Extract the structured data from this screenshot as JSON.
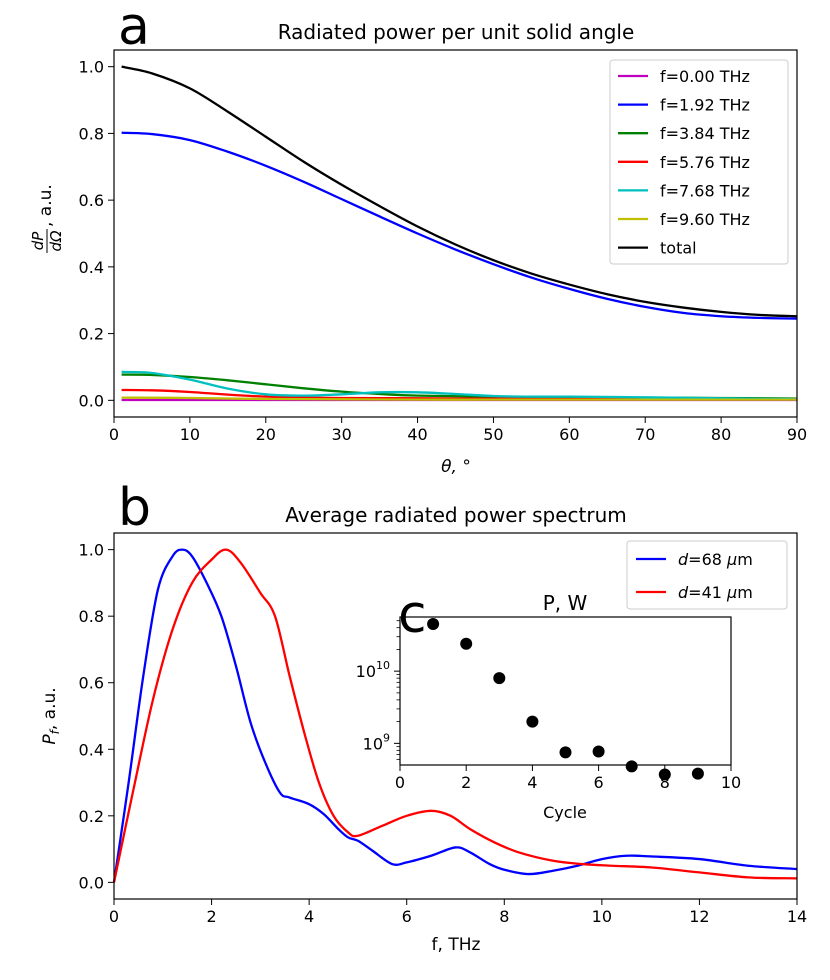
{
  "chart_data": [
    {
      "panel_label": "a",
      "type": "line",
      "title": "Radiated power per unit solid angle",
      "xlabel": "θ, °",
      "ylabel": {
        "num": "dP",
        "den": "dΩ",
        "suffix": ", a.u."
      },
      "xlim": [
        0,
        90
      ],
      "ylim": [
        -0.05,
        1.05
      ],
      "xticks": [
        0,
        10,
        20,
        30,
        40,
        50,
        60,
        70,
        80,
        90
      ],
      "xtick_labels": [
        "0",
        "10",
        "20",
        "30",
        "40",
        "50",
        "60",
        "70",
        "80",
        "90"
      ],
      "yticks": [
        0,
        0.2,
        0.4,
        0.6,
        0.8,
        1.0
      ],
      "ytick_labels": [
        "0.0",
        "0.2",
        "0.4",
        "0.6",
        "0.8",
        "1.0"
      ],
      "legend_position": "top-right",
      "series": [
        {
          "name": "f=0.00 THz",
          "color": "#bf00bf",
          "x": [
            1,
            10,
            20,
            30,
            40,
            50,
            60,
            70,
            80,
            90
          ],
          "values": [
            0.001,
            0.001,
            0.001,
            0.001,
            0.001,
            0.001,
            0.001,
            0.001,
            0.001,
            0.001
          ]
        },
        {
          "name": "f=1.92 THz",
          "color": "#0000ff",
          "x": [
            1,
            5,
            10,
            15,
            20,
            25,
            30,
            35,
            40,
            45,
            50,
            55,
            60,
            65,
            70,
            75,
            80,
            85,
            90
          ],
          "values": [
            0.802,
            0.798,
            0.78,
            0.745,
            0.703,
            0.655,
            0.603,
            0.551,
            0.5,
            0.452,
            0.408,
            0.368,
            0.334,
            0.304,
            0.28,
            0.262,
            0.252,
            0.247,
            0.245
          ]
        },
        {
          "name": "f=3.84 THz",
          "color": "#008000",
          "x": [
            1,
            5,
            10,
            15,
            20,
            25,
            30,
            35,
            40,
            50,
            60,
            70,
            80,
            90
          ],
          "values": [
            0.077,
            0.076,
            0.07,
            0.06,
            0.048,
            0.036,
            0.026,
            0.019,
            0.014,
            0.011,
            0.009,
            0.008,
            0.007,
            0.005
          ]
        },
        {
          "name": "f=5.76 THz",
          "color": "#ff0000",
          "x": [
            1,
            5,
            10,
            15,
            20,
            25,
            30,
            40,
            50,
            60,
            70,
            80,
            90
          ],
          "values": [
            0.031,
            0.03,
            0.025,
            0.017,
            0.011,
            0.008,
            0.007,
            0.006,
            0.005,
            0.004,
            0.004,
            0.003,
            0.003
          ]
        },
        {
          "name": "f=7.68 THz",
          "color": "#00bfbf",
          "x": [
            1,
            5,
            10,
            15,
            20,
            25,
            30,
            35,
            40,
            45,
            50,
            55,
            60,
            70,
            80,
            90
          ],
          "values": [
            0.085,
            0.082,
            0.062,
            0.035,
            0.018,
            0.014,
            0.018,
            0.024,
            0.024,
            0.019,
            0.013,
            0.011,
            0.011,
            0.009,
            0.006,
            0.003
          ]
        },
        {
          "name": "f=9.60 THz",
          "color": "#bfbf00",
          "x": [
            1,
            10,
            20,
            30,
            40,
            50,
            60,
            70,
            80,
            90
          ],
          "values": [
            0.008,
            0.007,
            0.004,
            0.003,
            0.002,
            0.002,
            0.002,
            0.002,
            0.002,
            0.002
          ]
        },
        {
          "name": "total",
          "color": "#000000",
          "x": [
            1,
            5,
            10,
            15,
            20,
            25,
            30,
            35,
            40,
            45,
            50,
            55,
            60,
            65,
            70,
            75,
            80,
            85,
            90
          ],
          "values": [
            1.0,
            0.98,
            0.935,
            0.865,
            0.79,
            0.715,
            0.646,
            0.582,
            0.521,
            0.467,
            0.42,
            0.38,
            0.347,
            0.318,
            0.295,
            0.278,
            0.265,
            0.256,
            0.252
          ]
        }
      ]
    },
    {
      "panel_label": "b",
      "type": "line",
      "title": "Average radiated power spectrum",
      "xlabel": "f, THz",
      "ylabel": {
        "main": "P",
        "sub": "f",
        "suffix": ", a.u."
      },
      "xlim": [
        0,
        14
      ],
      "ylim": [
        -0.05,
        1.05
      ],
      "xticks": [
        0,
        2,
        4,
        6,
        8,
        10,
        12,
        14
      ],
      "xtick_labels": [
        "0",
        "2",
        "4",
        "6",
        "8",
        "10",
        "12",
        "14"
      ],
      "yticks": [
        0,
        0.2,
        0.4,
        0.6,
        0.8,
        1.0
      ],
      "ytick_labels": [
        "0.0",
        "0.2",
        "0.4",
        "0.6",
        "0.8",
        "1.0"
      ],
      "legend_position": "top-right",
      "series": [
        {
          "name": "d=68 μm",
          "legend_var": "d",
          "legend_rest": "=68 ",
          "legend_unit_mu": "μ",
          "legend_unit": "m",
          "color": "#0000ff",
          "x": [
            0,
            0.3,
            0.6,
            0.9,
            1.2,
            1.4,
            1.6,
            1.9,
            2.2,
            2.5,
            2.8,
            3.1,
            3.4,
            3.6,
            4.0,
            4.3,
            4.6,
            4.8,
            5.0,
            5.3,
            5.7,
            6.0,
            6.5,
            7.0,
            7.3,
            7.7,
            8.0,
            8.5,
            9.0,
            9.5,
            10.0,
            10.5,
            11.0,
            12.0,
            13.0,
            14.0
          ],
          "values": [
            0.0,
            0.3,
            0.62,
            0.88,
            0.98,
            1.0,
            0.98,
            0.9,
            0.8,
            0.65,
            0.48,
            0.36,
            0.27,
            0.255,
            0.235,
            0.205,
            0.16,
            0.135,
            0.125,
            0.095,
            0.055,
            0.06,
            0.08,
            0.105,
            0.09,
            0.055,
            0.038,
            0.025,
            0.035,
            0.05,
            0.07,
            0.08,
            0.078,
            0.07,
            0.05,
            0.04
          ]
        },
        {
          "name": "d=41 μm",
          "legend_var": "d",
          "legend_rest": "=41 ",
          "legend_unit_mu": "μ",
          "legend_unit": "m",
          "color": "#ff0000",
          "x": [
            0,
            0.4,
            0.8,
            1.2,
            1.6,
            2.0,
            2.3,
            2.6,
            3.0,
            3.3,
            3.6,
            3.9,
            4.2,
            4.5,
            4.8,
            5.0,
            5.5,
            6.0,
            6.5,
            6.9,
            7.3,
            7.8,
            8.3,
            9.0,
            9.6,
            10.2,
            11.0,
            12.0,
            13.0,
            14.0
          ],
          "values": [
            0.0,
            0.28,
            0.55,
            0.76,
            0.9,
            0.97,
            1.0,
            0.96,
            0.87,
            0.8,
            0.62,
            0.45,
            0.3,
            0.2,
            0.15,
            0.14,
            0.17,
            0.2,
            0.215,
            0.2,
            0.16,
            0.12,
            0.09,
            0.065,
            0.055,
            0.05,
            0.045,
            0.03,
            0.015,
            0.012
          ]
        }
      ]
    },
    {
      "panel_label": "c",
      "type": "scatter",
      "title": "P, W",
      "xlabel": "Cycle",
      "ylabel": "",
      "yscale": "log",
      "xlim": [
        0,
        10
      ],
      "ylim_log10": [
        8.7,
        10.75
      ],
      "xticks": [
        0,
        2,
        4,
        6,
        8,
        10
      ],
      "xtick_labels": [
        "0",
        "2",
        "4",
        "6",
        "8",
        "10"
      ],
      "yticks_log10": [
        9,
        10
      ],
      "ytick_bases": [
        "10",
        "10"
      ],
      "ytick_exps": [
        "9",
        "10"
      ],
      "x": [
        1,
        2,
        3,
        4,
        5,
        6,
        7,
        8,
        9
      ],
      "values": [
        45000000000,
        24000000000,
        8000000000,
        2000000000,
        750000000,
        770000000,
        480000000,
        370000000,
        380000000
      ],
      "marker_color": "#000000"
    }
  ]
}
